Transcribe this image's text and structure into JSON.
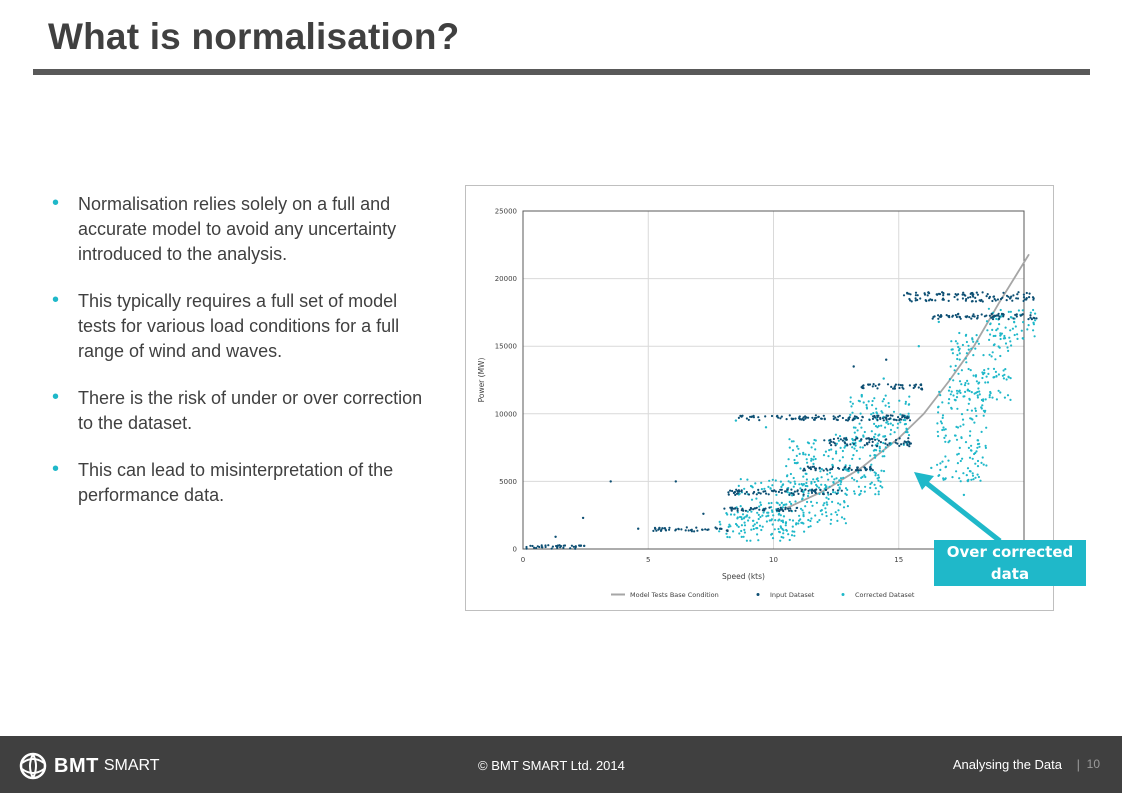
{
  "slide": {
    "title": "What is normalisation?",
    "bullets": [
      "Normalisation relies solely on a full and accurate model to avoid any uncertainty introduced to the analysis.",
      "This typically requires a full set of model tests for various load conditions for a full range of wind and waves.",
      "There is the risk of under or over correction to the dataset.",
      "This can lead to misinterpretation of the performance data."
    ],
    "callout": "Over corrected data"
  },
  "footer": {
    "brand": "BMT",
    "brand_suffix": "SMART",
    "copyright": "© BMT SMART Ltd. 2014",
    "section": "Analysing the Data",
    "separator": "|",
    "page": "10"
  },
  "colors": {
    "accent": "#1fb8c9",
    "input": "#0d4f73",
    "corrected": "#1fb8c9",
    "model": "#a6a6a6",
    "footer": "#404040"
  },
  "chart_data": {
    "type": "scatter",
    "xlabel": "Speed (kts)",
    "ylabel": "Power (MW)",
    "xlim": [
      0,
      20
    ],
    "ylim": [
      0,
      25000
    ],
    "x_ticks": [
      "0",
      "5",
      "10",
      "15"
    ],
    "y_ticks": [
      "0",
      "5000",
      "10000",
      "15000",
      "20000",
      "25000"
    ],
    "grid": true,
    "legend": [
      "Model Tests Base Condition",
      "Input Dataset",
      "Corrected Dataset"
    ],
    "legend_position": "bottom",
    "series": [
      {
        "name": "Model Tests Base Condition",
        "kind": "line",
        "x": [
          10.5,
          12,
          13.5,
          15,
          16,
          17,
          18,
          19,
          20.2
        ],
        "y": [
          3000,
          4300,
          6000,
          8200,
          10000,
          12400,
          15000,
          18200,
          21800
        ]
      },
      {
        "name": "Input Dataset",
        "kind": "scatter",
        "clusters": [
          {
            "x": [
              0.1,
              2.5
            ],
            "y": [
              0,
              300
            ]
          },
          {
            "x": [
              5.2,
              8.2
            ],
            "y": [
              1300,
              1600
            ]
          },
          {
            "x": [
              8,
              11
            ],
            "y": [
              2800,
              3100
            ]
          },
          {
            "x": [
              8.2,
              12.8
            ],
            "y": [
              4000,
              4400
            ]
          },
          {
            "x": [
              11,
              14
            ],
            "y": [
              5800,
              6100
            ]
          },
          {
            "x": [
              12,
              15.5
            ],
            "y": [
              7600,
              8200
            ]
          },
          {
            "x": [
              8.5,
              15.5
            ],
            "y": [
              9500,
              9900
            ]
          },
          {
            "x": [
              13.5,
              16
            ],
            "y": [
              11800,
              12200
            ]
          },
          {
            "x": [
              16.3,
              20.5
            ],
            "y": [
              17000,
              17400
            ]
          },
          {
            "x": [
              15.2,
              20.5
            ],
            "y": [
              18300,
              19000
            ]
          }
        ],
        "outliers": [
          [
            3.5,
            5000
          ],
          [
            6.1,
            5000
          ],
          [
            2.4,
            2300
          ],
          [
            4.6,
            1500
          ],
          [
            1.3,
            900
          ],
          [
            7.2,
            2600
          ],
          [
            13.2,
            13500
          ],
          [
            14.5,
            14000
          ]
        ]
      },
      {
        "name": "Corrected Dataset",
        "kind": "scatter",
        "clusters": [
          {
            "x": [
              7.8,
              11.5
            ],
            "y": [
              600,
              2800
            ]
          },
          {
            "x": [
              8.5,
              13
            ],
            "y": [
              1800,
              5200
            ]
          },
          {
            "x": [
              10.5,
              14.5
            ],
            "y": [
              4000,
              8500
            ]
          },
          {
            "x": [
              13,
              15.5
            ],
            "y": [
              7500,
              11500
            ]
          },
          {
            "x": [
              16.5,
              18.5
            ],
            "y": [
              5000,
              12000
            ]
          },
          {
            "x": [
              17,
              19.5
            ],
            "y": [
              11000,
              16000
            ]
          },
          {
            "x": [
              18.5,
              20.5
            ],
            "y": [
              15500,
              17800
            ]
          }
        ],
        "outliers": [
          [
            8.5,
            9500
          ],
          [
            9.7,
            9000
          ],
          [
            14.4,
            12600
          ],
          [
            16.3,
            6000
          ],
          [
            17.6,
            4000
          ],
          [
            16.6,
            16800
          ],
          [
            15.8,
            15000
          ]
        ]
      }
    ]
  }
}
